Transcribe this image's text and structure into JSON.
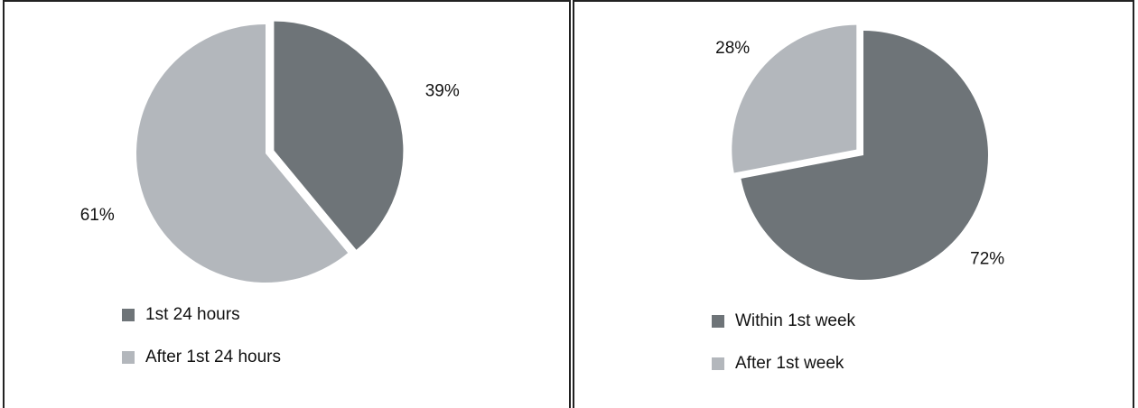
{
  "colors": {
    "dark": "#6e7478",
    "light": "#b3b7bc"
  },
  "chart_data": [
    {
      "type": "pie",
      "title": "",
      "categories": [
        "1st 24 hours",
        "After 1st 24 hours"
      ],
      "values": [
        39,
        61
      ],
      "value_labels": [
        "39%",
        "61%"
      ],
      "colors": [
        "#6e7478",
        "#b3b7bc"
      ],
      "exploded": "1st 24 hours",
      "legend_position": "bottom-left"
    },
    {
      "type": "pie",
      "title": "",
      "categories": [
        "Within 1st week",
        "After 1st week"
      ],
      "values": [
        72,
        28
      ],
      "value_labels": [
        "72%",
        "28%"
      ],
      "colors": [
        "#6e7478",
        "#b3b7bc"
      ],
      "exploded": "After 1st week",
      "legend_position": "bottom-left"
    }
  ]
}
